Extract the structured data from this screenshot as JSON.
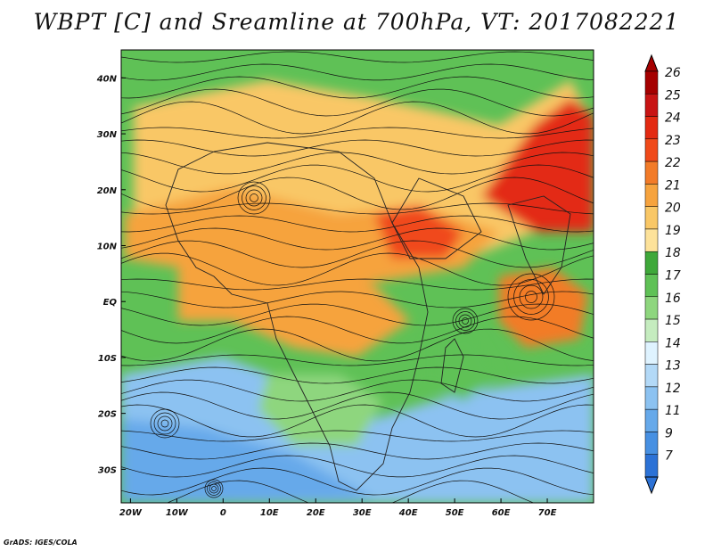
{
  "title": "WBPT [C] and Sreamline at 700hPa, VT: 2017082221",
  "credit": "GrADS: IGES/COLA",
  "map": {
    "lon_range": [
      -22,
      80
    ],
    "lat_range": [
      -36,
      45
    ],
    "x_ticks": [
      {
        "lon": -20,
        "label": "20W"
      },
      {
        "lon": -10,
        "label": "10W"
      },
      {
        "lon": 0,
        "label": "0"
      },
      {
        "lon": 10,
        "label": "10E"
      },
      {
        "lon": 20,
        "label": "20E"
      },
      {
        "lon": 30,
        "label": "30E"
      },
      {
        "lon": 40,
        "label": "40E"
      },
      {
        "lon": 50,
        "label": "50E"
      },
      {
        "lon": 60,
        "label": "60E"
      },
      {
        "lon": 70,
        "label": "70E"
      }
    ],
    "y_ticks": [
      {
        "lat": 40,
        "label": "40N"
      },
      {
        "lat": 30,
        "label": "30N"
      },
      {
        "lat": 20,
        "label": "20N"
      },
      {
        "lat": 10,
        "label": "10N"
      },
      {
        "lat": 0,
        "label": "EQ"
      },
      {
        "lat": -10,
        "label": "10S"
      },
      {
        "lat": -20,
        "label": "20S"
      },
      {
        "lat": -30,
        "label": "30S"
      }
    ]
  },
  "colorbar": {
    "labels": [
      "26",
      "25",
      "24",
      "23",
      "22",
      "21",
      "20",
      "19",
      "18",
      "17",
      "16",
      "15",
      "14",
      "13",
      "12",
      "11",
      "9",
      "7"
    ],
    "colors": [
      "#a50000",
      "#c81414",
      "#e32a12",
      "#f04a1a",
      "#f27b28",
      "#f6a33e",
      "#f9c766",
      "#fde29a",
      "#3fa83a",
      "#5fc156",
      "#8ed67e",
      "#c5ecbf",
      "#dff3ff",
      "#b3d9f7",
      "#8cc2f1",
      "#66a9ea",
      "#4790e2",
      "#2c72d6"
    ]
  },
  "fields": {
    "wbpt_regions": [
      {
        "name": "bg-green",
        "value": 17,
        "color": "#5fc156"
      },
      {
        "name": "ocean-south",
        "value": 12,
        "color": "#8cc2f1"
      },
      {
        "name": "deep-south",
        "value": 11,
        "color": "#66a9ea"
      },
      {
        "name": "africa-north",
        "value": 20,
        "color": "#f9c766"
      },
      {
        "name": "sahel-band",
        "value": 21,
        "color": "#f6a33e"
      },
      {
        "name": "central-africa",
        "value": 21,
        "color": "#f6a33e"
      },
      {
        "name": "arabia-hot",
        "value": 23,
        "color": "#f04a1a"
      },
      {
        "name": "india",
        "value": 24,
        "color": "#e32a12"
      },
      {
        "name": "arabian-sea-eddy",
        "value": 22,
        "color": "#f27b28"
      },
      {
        "name": "madagascar",
        "value": 17,
        "color": "#5fc156"
      },
      {
        "name": "southern-africa",
        "value": 16,
        "color": "#8ed67e"
      }
    ]
  }
}
